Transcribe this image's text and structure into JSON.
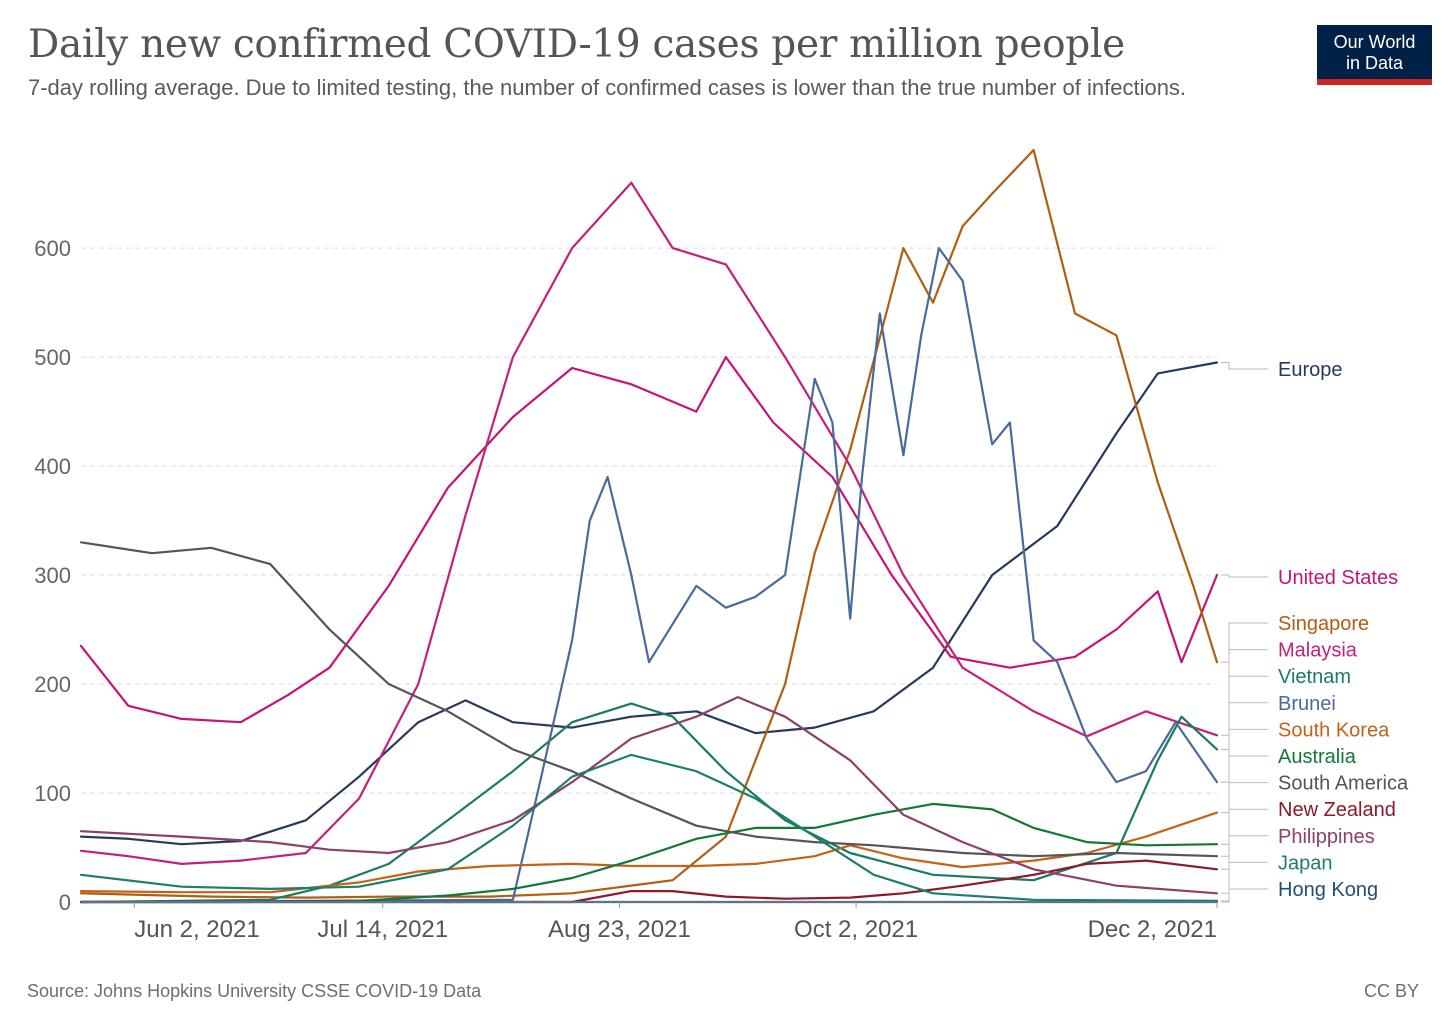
{
  "header": {
    "title": "Daily new confirmed COVID-19 cases per million people",
    "subtitle": "7-day rolling average. Due to limited testing, the number of confirmed cases is lower than the true number of infections.",
    "logo_line1": "Our World",
    "logo_line2": "in Data",
    "logo_colors": {
      "background": "#002147",
      "stripe": "#ce261e"
    }
  },
  "footer": {
    "source": "Source: Johns Hopkins University CSSE COVID-19 Data",
    "license": "CC BY"
  },
  "chart_data": {
    "type": "line",
    "title": "Daily new confirmed COVID-19 cases per million people",
    "subtitle": "7-day rolling average. Due to limited testing, the number of confirmed cases is lower than the true number of infections.",
    "xlabel": "",
    "ylabel": "",
    "x_start": "May 24, 2021",
    "x_end": "Dec 2, 2021",
    "ylim": [
      0,
      690
    ],
    "y_ticks": [
      0,
      100,
      200,
      300,
      400,
      500,
      600
    ],
    "x_ticks": [
      {
        "label": "Jun 2, 2021",
        "date": "2021-06-02"
      },
      {
        "label": "Jul 14, 2021",
        "date": "2021-07-14"
      },
      {
        "label": "Aug 23, 2021",
        "date": "2021-08-23"
      },
      {
        "label": "Oct 2, 2021",
        "date": "2021-10-02"
      },
      {
        "label": "Dec 2, 2021",
        "date": "2021-12-02"
      }
    ],
    "grid": true,
    "legend": "right, labels at line ends",
    "series": [
      {
        "name": "Europe",
        "color": "#283a5c",
        "x": [
          "2021-05-24",
          "2021-06-01",
          "2021-06-10",
          "2021-06-20",
          "2021-07-01",
          "2021-07-10",
          "2021-07-20",
          "2021-07-28",
          "2021-08-05",
          "2021-08-15",
          "2021-08-25",
          "2021-09-05",
          "2021-09-15",
          "2021-09-25",
          "2021-10-05",
          "2021-10-15",
          "2021-10-25",
          "2021-11-05",
          "2021-11-15",
          "2021-11-22",
          "2021-12-02"
        ],
        "y": [
          60,
          58,
          53,
          56,
          75,
          115,
          165,
          185,
          165,
          160,
          170,
          175,
          155,
          160,
          175,
          215,
          300,
          345,
          430,
          485,
          495
        ]
      },
      {
        "name": "United States",
        "color": "#c4137a",
        "x": [
          "2021-05-24",
          "2021-06-01",
          "2021-06-10",
          "2021-06-20",
          "2021-06-28",
          "2021-07-05",
          "2021-07-15",
          "2021-07-25",
          "2021-08-05",
          "2021-08-15",
          "2021-08-25",
          "2021-09-05",
          "2021-09-10",
          "2021-09-18",
          "2021-09-28",
          "2021-10-08",
          "2021-10-18",
          "2021-10-28",
          "2021-11-08",
          "2021-11-15",
          "2021-11-22",
          "2021-11-26",
          "2021-12-02"
        ],
        "y": [
          235,
          180,
          168,
          165,
          190,
          215,
          290,
          380,
          445,
          490,
          475,
          450,
          500,
          440,
          390,
          300,
          225,
          215,
          225,
          250,
          285,
          220,
          300
        ]
      },
      {
        "name": "Singapore",
        "color": "#b05e10",
        "x": [
          "2021-05-24",
          "2021-06-15",
          "2021-07-01",
          "2021-07-15",
          "2021-08-01",
          "2021-08-15",
          "2021-09-01",
          "2021-09-10",
          "2021-09-20",
          "2021-09-25",
          "2021-10-01",
          "2021-10-10",
          "2021-10-15",
          "2021-10-20",
          "2021-10-25",
          "2021-11-01",
          "2021-11-08",
          "2021-11-15",
          "2021-11-22",
          "2021-11-28",
          "2021-12-02"
        ],
        "y": [
          8,
          5,
          4,
          5,
          5,
          8,
          20,
          60,
          200,
          320,
          415,
          600,
          550,
          620,
          650,
          690,
          540,
          520,
          385,
          290,
          220
        ]
      },
      {
        "name": "Malaysia",
        "color": "#c3207c",
        "x": [
          "2021-05-24",
          "2021-06-01",
          "2021-06-10",
          "2021-06-20",
          "2021-07-01",
          "2021-07-10",
          "2021-07-20",
          "2021-07-28",
          "2021-08-05",
          "2021-08-15",
          "2021-08-25",
          "2021-09-01",
          "2021-09-10",
          "2021-09-20",
          "2021-10-01",
          "2021-10-10",
          "2021-10-20",
          "2021-11-01",
          "2021-11-10",
          "2021-11-20",
          "2021-12-02"
        ],
        "y": [
          47,
          42,
          35,
          38,
          45,
          95,
          200,
          355,
          500,
          600,
          660,
          600,
          585,
          500,
          400,
          300,
          215,
          175,
          152,
          175,
          153
        ]
      },
      {
        "name": "Vietnam",
        "color": "#1b7a63",
        "x": [
          "2021-05-24",
          "2021-06-10",
          "2021-06-25",
          "2021-07-05",
          "2021-07-15",
          "2021-07-25",
          "2021-08-05",
          "2021-08-15",
          "2021-08-25",
          "2021-09-01",
          "2021-09-10",
          "2021-09-20",
          "2021-10-01",
          "2021-10-15",
          "2021-11-01",
          "2021-11-15",
          "2021-11-22",
          "2021-11-26",
          "2021-12-02"
        ],
        "y": [
          0,
          1,
          2,
          15,
          35,
          75,
          120,
          165,
          182,
          170,
          120,
          75,
          45,
          25,
          20,
          45,
          130,
          170,
          140
        ]
      },
      {
        "name": "Brunei",
        "color": "#4b6a9c",
        "x": [
          "2021-05-24",
          "2021-08-05",
          "2021-08-10",
          "2021-08-15",
          "2021-08-18",
          "2021-08-21",
          "2021-08-25",
          "2021-08-28",
          "2021-09-05",
          "2021-09-10",
          "2021-09-15",
          "2021-09-20",
          "2021-09-25",
          "2021-09-28",
          "2021-10-01",
          "2021-10-03",
          "2021-10-06",
          "2021-10-10",
          "2021-10-13",
          "2021-10-16",
          "2021-10-20",
          "2021-10-25",
          "2021-10-28",
          "2021-11-01",
          "2021-11-05",
          "2021-11-10",
          "2021-11-15",
          "2021-11-20",
          "2021-11-25",
          "2021-12-02"
        ],
        "y": [
          0,
          2,
          120,
          240,
          350,
          390,
          300,
          220,
          290,
          270,
          280,
          300,
          480,
          440,
          260,
          390,
          540,
          410,
          520,
          600,
          570,
          420,
          440,
          240,
          220,
          150,
          110,
          120,
          165,
          110
        ]
      },
      {
        "name": "South Korea",
        "color": "#c4621a",
        "x": [
          "2021-05-24",
          "2021-06-10",
          "2021-06-25",
          "2021-07-10",
          "2021-07-20",
          "2021-08-01",
          "2021-08-15",
          "2021-08-25",
          "2021-09-05",
          "2021-09-15",
          "2021-09-25",
          "2021-10-01",
          "2021-10-10",
          "2021-10-20",
          "2021-11-01",
          "2021-11-10",
          "2021-11-20",
          "2021-12-02"
        ],
        "y": [
          10,
          9,
          9,
          18,
          28,
          33,
          35,
          33,
          33,
          35,
          42,
          52,
          40,
          32,
          38,
          45,
          60,
          82
        ]
      },
      {
        "name": "Australia",
        "color": "#0f7a35",
        "x": [
          "2021-05-24",
          "2021-06-20",
          "2021-07-10",
          "2021-07-25",
          "2021-08-05",
          "2021-08-15",
          "2021-08-25",
          "2021-09-05",
          "2021-09-15",
          "2021-09-25",
          "2021-10-05",
          "2021-10-15",
          "2021-10-25",
          "2021-11-01",
          "2021-11-10",
          "2021-11-20",
          "2021-12-02"
        ],
        "y": [
          0,
          0,
          1,
          6,
          12,
          22,
          38,
          58,
          68,
          68,
          80,
          90,
          85,
          68,
          55,
          52,
          53
        ]
      },
      {
        "name": "South America",
        "color": "#555555",
        "x": [
          "2021-05-24",
          "2021-06-05",
          "2021-06-15",
          "2021-06-25",
          "2021-07-05",
          "2021-07-15",
          "2021-07-25",
          "2021-08-05",
          "2021-08-15",
          "2021-08-25",
          "2021-09-05",
          "2021-09-15",
          "2021-09-25",
          "2021-10-05",
          "2021-10-20",
          "2021-11-01",
          "2021-11-15",
          "2021-12-02"
        ],
        "y": [
          330,
          320,
          325,
          310,
          250,
          200,
          175,
          140,
          120,
          95,
          70,
          60,
          55,
          52,
          45,
          42,
          45,
          42
        ]
      },
      {
        "name": "New Zealand",
        "color": "#8b1a2b",
        "x": [
          "2021-05-24",
          "2021-08-15",
          "2021-08-25",
          "2021-09-01",
          "2021-09-10",
          "2021-09-20",
          "2021-10-01",
          "2021-10-10",
          "2021-10-20",
          "2021-11-01",
          "2021-11-10",
          "2021-11-20",
          "2021-12-02"
        ],
        "y": [
          0,
          0,
          10,
          10,
          5,
          3,
          4,
          8,
          15,
          25,
          35,
          38,
          30
        ]
      },
      {
        "name": "Philippines",
        "color": "#8e3f6a",
        "x": [
          "2021-05-24",
          "2021-06-10",
          "2021-06-25",
          "2021-07-05",
          "2021-07-15",
          "2021-07-25",
          "2021-08-05",
          "2021-08-15",
          "2021-08-25",
          "2021-09-05",
          "2021-09-12",
          "2021-09-20",
          "2021-10-01",
          "2021-10-10",
          "2021-10-20",
          "2021-11-01",
          "2021-11-15",
          "2021-12-02"
        ],
        "y": [
          65,
          60,
          55,
          48,
          45,
          55,
          75,
          110,
          150,
          170,
          188,
          170,
          130,
          80,
          55,
          30,
          15,
          8
        ]
      },
      {
        "name": "Japan",
        "color": "#1d7f6a",
        "x": [
          "2021-05-24",
          "2021-06-10",
          "2021-06-25",
          "2021-07-10",
          "2021-07-25",
          "2021-08-05",
          "2021-08-15",
          "2021-08-25",
          "2021-09-05",
          "2021-09-15",
          "2021-09-25",
          "2021-10-05",
          "2021-10-15",
          "2021-11-01",
          "2021-12-02"
        ],
        "y": [
          25,
          14,
          12,
          14,
          30,
          70,
          115,
          135,
          120,
          95,
          60,
          25,
          8,
          2,
          1
        ]
      },
      {
        "name": "Hong Kong",
        "color": "#1f4e79",
        "x": [
          "2021-05-24",
          "2021-12-02"
        ],
        "y": [
          0,
          0
        ]
      }
    ],
    "label_order": [
      "Europe",
      "United States",
      "Singapore",
      "Malaysia",
      "Vietnam",
      "Brunei",
      "South Korea",
      "Australia",
      "South America",
      "New Zealand",
      "Philippines",
      "Japan",
      "Hong Kong"
    ]
  }
}
